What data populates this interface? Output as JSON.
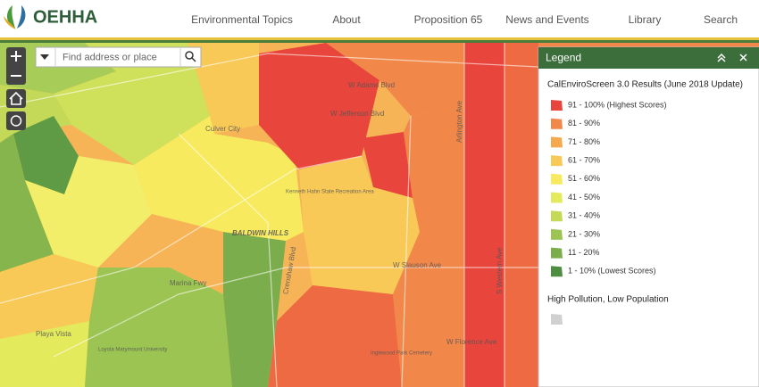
{
  "header": {
    "logo": "OEHHA",
    "nav": [
      "Environmental Topics",
      "About",
      "Proposition 65",
      "News and Events",
      "Library",
      "Search"
    ]
  },
  "map": {
    "search_placeholder": "Find address or place",
    "labels": [
      "Culver City",
      "BALDWIN HILLS",
      "Playa Vista",
      "Kenneth Hahn State Recreation Area",
      "W Adams Blvd",
      "W Jefferson Blvd",
      "W Slauson Ave",
      "S Western Ave",
      "Crenshaw Blvd",
      "Marina Fwy",
      "W Florence Ave",
      "Arlington Ave",
      "Inglewood Park Cemetery",
      "Loyola Marymount University"
    ]
  },
  "legend": {
    "title": "Legend",
    "subtitle": "CalEnviroScreen 3.0 Results (June 2018 Update)",
    "items": [
      {
        "label": "91 - 100% (Highest Scores)",
        "color": "#e8453c"
      },
      {
        "label": "81 - 90%",
        "color": "#f2874a"
      },
      {
        "label": "71 - 80%",
        "color": "#f6a84f"
      },
      {
        "label": "61 - 70%",
        "color": "#f8c957"
      },
      {
        "label": "51 - 60%",
        "color": "#f7ea5e"
      },
      {
        "label": "41 - 50%",
        "color": "#e3ea5c"
      },
      {
        "label": "31 - 40%",
        "color": "#c4d957"
      },
      {
        "label": "21 - 30%",
        "color": "#9cc452"
      },
      {
        "label": "11 - 20%",
        "color": "#7cad4c"
      },
      {
        "label": "1 - 10% (Lowest Scores)",
        "color": "#4f8e41"
      }
    ],
    "extra_title": "High Pollution, Low Population",
    "extra_color": "#d0d0d0"
  }
}
